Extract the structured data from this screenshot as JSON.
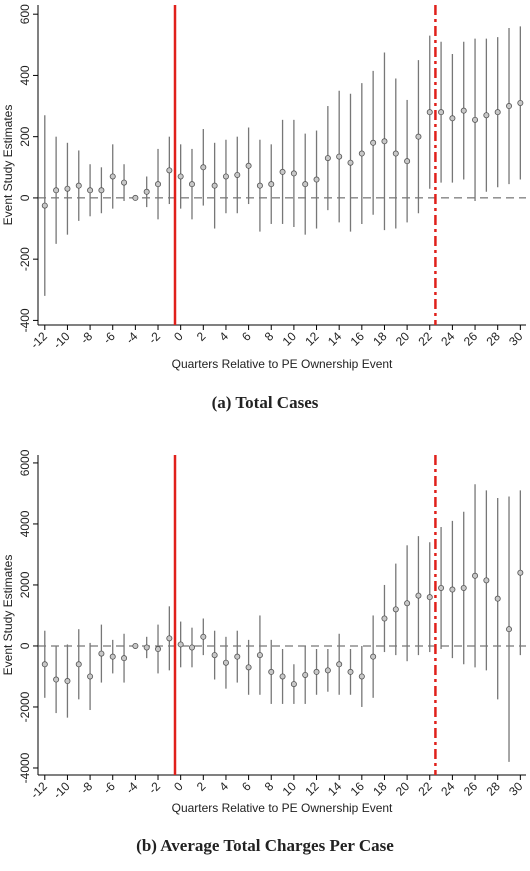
{
  "chart_data": [
    {
      "type": "errorbar",
      "x_label": "Quarters Relative to PE Ownership Event",
      "y_label": "Event Study Estimates",
      "caption": "(a) Total Cases",
      "x": [
        -12,
        -11,
        -10,
        -9,
        -8,
        -7,
        -6,
        -5,
        -4,
        -3,
        -2,
        -1,
        0,
        1,
        2,
        3,
        4,
        5,
        6,
        7,
        8,
        9,
        10,
        11,
        12,
        13,
        14,
        15,
        16,
        17,
        18,
        19,
        20,
        21,
        22,
        23,
        24,
        25,
        26,
        27,
        28,
        29,
        30
      ],
      "values": [
        -25,
        25,
        30,
        40,
        25,
        25,
        70,
        50,
        0,
        20,
        45,
        90,
        70,
        45,
        100,
        40,
        70,
        75,
        105,
        40,
        45,
        85,
        80,
        45,
        60,
        130,
        135,
        115,
        145,
        180,
        185,
        145,
        120,
        200,
        280,
        280,
        260,
        285,
        255,
        270,
        280,
        300,
        310
      ],
      "errors": [
        295,
        175,
        150,
        115,
        85,
        75,
        105,
        60,
        0,
        50,
        115,
        110,
        105,
        115,
        125,
        140,
        120,
        125,
        125,
        150,
        130,
        170,
        175,
        165,
        160,
        170,
        215,
        225,
        230,
        235,
        290,
        245,
        200,
        250,
        250,
        230,
        210,
        225,
        265,
        250,
        245,
        255,
        250
      ],
      "xlim": [
        -12.6,
        30.5
      ],
      "ylim": [
        -415,
        630
      ],
      "xticks": [
        -12,
        -10,
        -8,
        -6,
        -4,
        -2,
        0,
        2,
        4,
        6,
        8,
        10,
        12,
        14,
        16,
        18,
        20,
        22,
        24,
        26,
        28,
        30
      ],
      "yticks": [
        -400,
        -200,
        0,
        200,
        400,
        600
      ],
      "hline": 0,
      "vlines": [
        {
          "x": -0.5,
          "style": "solid",
          "color": "#e0201b"
        },
        {
          "x": 22.5,
          "style": "dashdot",
          "color": "#e0201b"
        }
      ]
    },
    {
      "type": "errorbar",
      "x_label": "Quarters Relative to PE Ownership Event",
      "y_label": "Event Study Estimates",
      "caption": "(b) Average Total Charges Per Case",
      "x": [
        -12,
        -11,
        -10,
        -9,
        -8,
        -7,
        -6,
        -5,
        -4,
        -3,
        -2,
        -1,
        0,
        1,
        2,
        3,
        4,
        5,
        6,
        7,
        8,
        9,
        10,
        11,
        12,
        13,
        14,
        15,
        16,
        17,
        18,
        19,
        20,
        21,
        22,
        23,
        24,
        25,
        26,
        27,
        28,
        29,
        30
      ],
      "values": [
        -600,
        -1100,
        -1150,
        -600,
        -1000,
        -250,
        -350,
        -400,
        0,
        -50,
        -100,
        250,
        50,
        -50,
        300,
        -300,
        -550,
        -350,
        -700,
        -300,
        -850,
        -1000,
        -1250,
        -950,
        -850,
        -800,
        -600,
        -850,
        -1000,
        -350,
        900,
        1200,
        1400,
        1650,
        1600,
        1900,
        1850,
        1900,
        2300,
        2150,
        1550,
        550,
        2400
      ],
      "errors": [
        1100,
        1100,
        1200,
        1150,
        1100,
        950,
        550,
        800,
        0,
        350,
        800,
        1050,
        750,
        650,
        600,
        800,
        850,
        850,
        900,
        1300,
        1050,
        900,
        650,
        950,
        750,
        700,
        1000,
        750,
        1000,
        1350,
        1100,
        1500,
        1900,
        1950,
        1800,
        2000,
        2250,
        2500,
        3000,
        2950,
        3300,
        4350,
        2700
      ],
      "xlim": [
        -12.6,
        30.5
      ],
      "ylim": [
        -4230,
        6260
      ],
      "xticks": [
        -12,
        -10,
        -8,
        -6,
        -4,
        -2,
        0,
        2,
        4,
        6,
        8,
        10,
        12,
        14,
        16,
        18,
        20,
        22,
        24,
        26,
        28,
        30
      ],
      "yticks": [
        -4000,
        -2000,
        0,
        2000,
        4000,
        6000
      ],
      "hline": 0,
      "vlines": [
        {
          "x": -0.5,
          "style": "solid",
          "color": "#e0201b"
        },
        {
          "x": 22.5,
          "style": "dashdot",
          "color": "#e0201b"
        }
      ]
    }
  ]
}
